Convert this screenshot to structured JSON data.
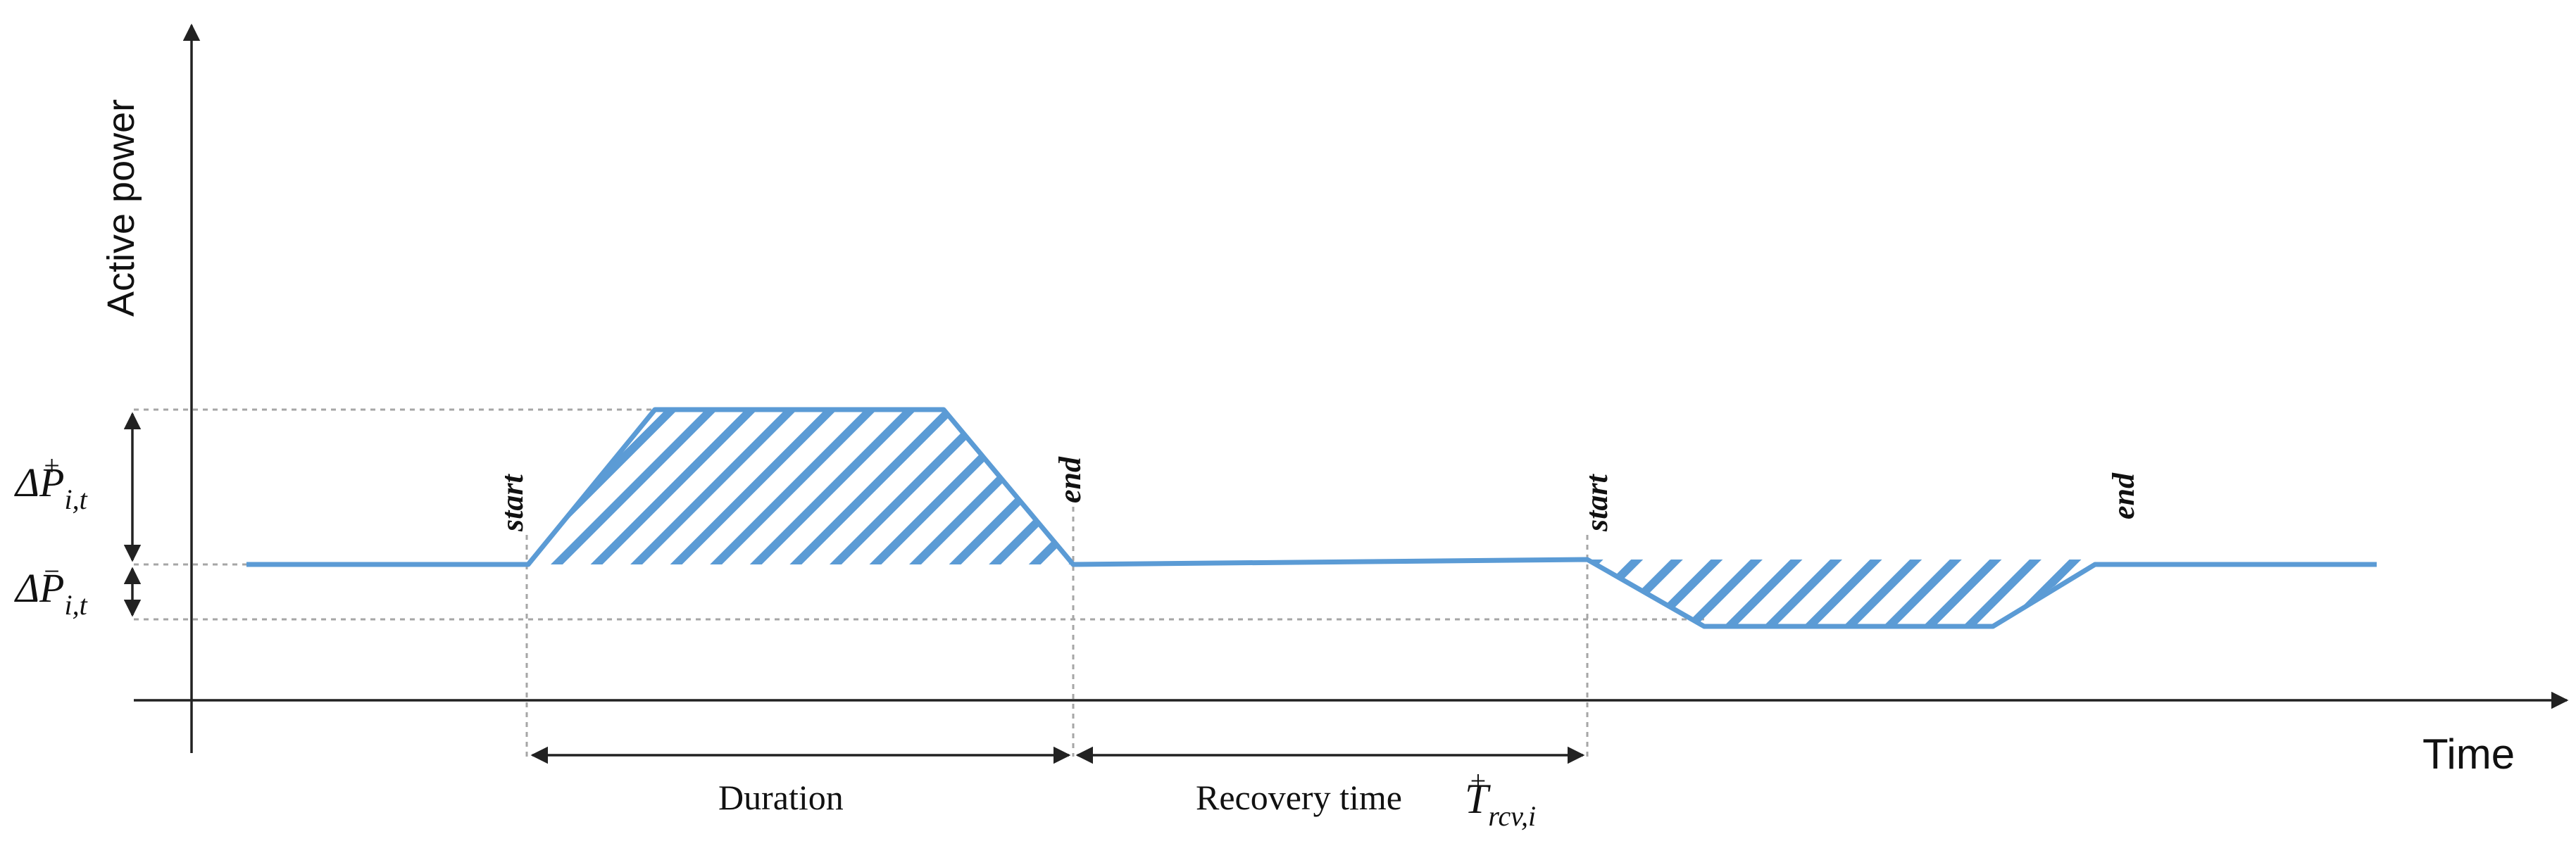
{
  "axes": {
    "y_label": "Active power",
    "x_label": "Time"
  },
  "delta_up": {
    "symbol": "ΔP",
    "sub": "i,t",
    "sup": "+"
  },
  "delta_down": {
    "symbol": "ΔP",
    "sub": "i,t",
    "sup": "−"
  },
  "event_up": {
    "start_label": "start",
    "end_label": "end"
  },
  "event_down": {
    "start_label": "start",
    "end_label": "end"
  },
  "spans": {
    "duration_label": "Duration",
    "recovery_label": "Recovery time",
    "recovery_symbol": {
      "main": "T",
      "sub": "rcv,i",
      "sup": "+"
    }
  },
  "colors": {
    "power_line": "#5b9bd5",
    "hatch": "#5b9bd5",
    "axis": "#222222",
    "guide": "#a6a6a6"
  }
}
